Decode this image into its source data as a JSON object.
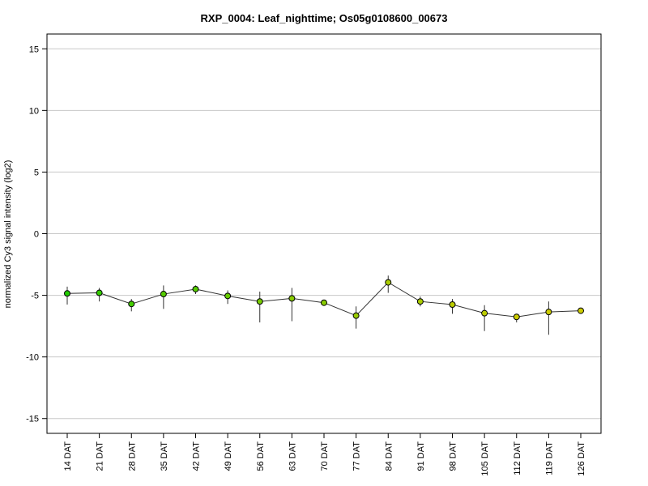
{
  "chart_data": {
    "type": "line",
    "title": "RXP_0004: Leaf_nighttime; Os05g0108600_00673",
    "xlabel": "",
    "ylabel": "normalized Cy3 signal intensity (log2)",
    "ylim": [
      -16.2,
      16.2
    ],
    "yticks": [
      15,
      10,
      5,
      0,
      -5,
      -10,
      -15
    ],
    "grid": true,
    "categories": [
      "14 DAT",
      "21 DAT",
      "28 DAT",
      "35 DAT",
      "42 DAT",
      "49 DAT",
      "56 DAT",
      "63 DAT",
      "70 DAT",
      "77 DAT",
      "84 DAT",
      "91 DAT",
      "98 DAT",
      "105 DAT",
      "112 DAT",
      "119 DAT",
      "126 DAT"
    ],
    "series": [
      {
        "values": [
          -4.85,
          -4.8,
          -5.7,
          -4.9,
          -4.5,
          -5.05,
          -5.5,
          -5.25,
          -5.6,
          -6.65,
          -3.95,
          -5.5,
          -5.75,
          -6.45,
          -6.75,
          -6.35,
          -6.25
        ],
        "err_low": [
          -5.75,
          -5.5,
          -6.3,
          -6.1,
          -4.9,
          -5.7,
          -7.2,
          -7.1,
          -5.8,
          -7.7,
          -4.8,
          -5.9,
          -6.5,
          -7.9,
          -7.2,
          -8.2,
          -6.4
        ],
        "err_high": [
          -4.3,
          -4.4,
          -5.3,
          -4.2,
          -4.2,
          -4.6,
          -4.7,
          -4.4,
          -5.4,
          -5.9,
          -3.4,
          -5.1,
          -5.3,
          -5.8,
          -6.5,
          -5.5,
          -6.1
        ],
        "point_colors": [
          "#22cc00",
          "#33cc00",
          "#44cc00",
          "#55cc00",
          "#55cc00",
          "#66cc00",
          "#77cc00",
          "#88cc00",
          "#88cc00",
          "#99cc00",
          "#aacc00",
          "#aacc00",
          "#bbcc00",
          "#bbcc00",
          "#cccc00",
          "#cccc00",
          "#cccc00"
        ]
      }
    ]
  },
  "colors": {
    "line": "#333333",
    "grid": "#c8c8c8",
    "axis": "#000000"
  }
}
